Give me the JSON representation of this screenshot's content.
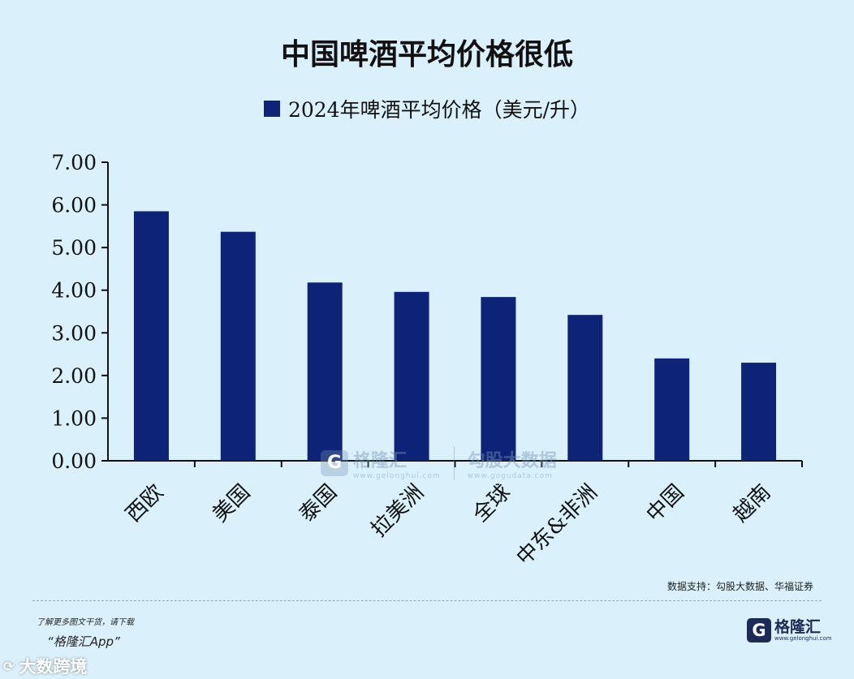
{
  "chart_data": {
    "type": "bar",
    "title": "中国啤酒平均价格很低",
    "series_name": "2024年啤酒平均价格（美元/升）",
    "categories": [
      "西欧",
      "美国",
      "泰国",
      "拉美洲",
      "全球",
      "中东&非洲",
      "中国",
      "越南"
    ],
    "values": [
      5.85,
      5.37,
      4.18,
      3.96,
      3.84,
      3.42,
      2.4,
      2.3
    ],
    "ylim": [
      0,
      7
    ],
    "yticks": [
      "0.00",
      "1.00",
      "2.00",
      "3.00",
      "4.00",
      "5.00",
      "6.00",
      "7.00"
    ],
    "xlabel": "",
    "ylabel": "",
    "bar_color": "#0d2377"
  },
  "watermark": {
    "logo_glyph": "G",
    "name": "格隆汇",
    "url": "www.gelonghui.com",
    "name2": "勾股大数据",
    "url2": "www.gogudata.com"
  },
  "source": "数据支持：勾股大数据、华福证券",
  "promo": {
    "line1": "了解更多图文干货，请下载",
    "line2": "“格隆汇App”"
  },
  "brand": {
    "logo_glyph": "G",
    "name": "格隆汇",
    "url": "www.gelonghui.com"
  },
  "corner": {
    "icon": "⟳",
    "text": "大数跨境"
  },
  "colors": {
    "background": "#daf1fb",
    "bar": "#0d2377"
  }
}
